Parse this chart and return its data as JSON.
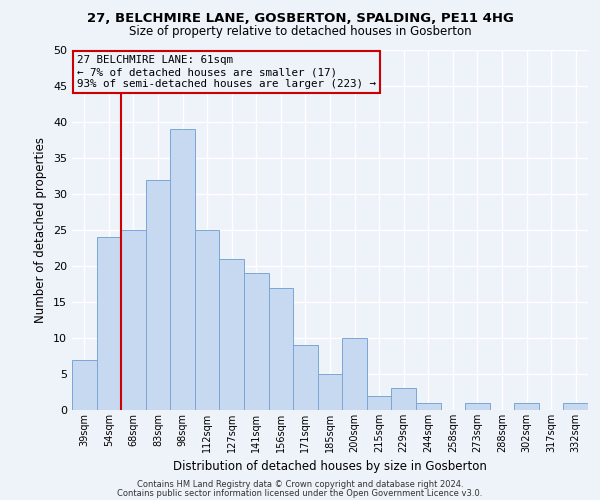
{
  "title": "27, BELCHMIRE LANE, GOSBERTON, SPALDING, PE11 4HG",
  "subtitle": "Size of property relative to detached houses in Gosberton",
  "xlabel": "Distribution of detached houses by size in Gosberton",
  "ylabel": "Number of detached properties",
  "bin_labels": [
    "39sqm",
    "54sqm",
    "68sqm",
    "83sqm",
    "98sqm",
    "112sqm",
    "127sqm",
    "141sqm",
    "156sqm",
    "171sqm",
    "185sqm",
    "200sqm",
    "215sqm",
    "229sqm",
    "244sqm",
    "258sqm",
    "273sqm",
    "288sqm",
    "302sqm",
    "317sqm",
    "332sqm"
  ],
  "bar_heights": [
    7,
    24,
    25,
    32,
    39,
    25,
    21,
    19,
    17,
    9,
    5,
    10,
    2,
    3,
    1,
    0,
    1,
    0,
    1,
    0,
    1
  ],
  "bar_color": "#c6d9f0",
  "bar_edge_color": "#7ba7d4",
  "vline_color": "#cc0000",
  "vline_x": 1.5,
  "annotation_line1": "27 BELCHMIRE LANE: 61sqm",
  "annotation_line2": "← 7% of detached houses are smaller (17)",
  "annotation_line3": "93% of semi-detached houses are larger (223) →",
  "annotation_box_edge": "#cc0000",
  "ylim": [
    0,
    50
  ],
  "yticks": [
    0,
    5,
    10,
    15,
    20,
    25,
    30,
    35,
    40,
    45,
    50
  ],
  "footnote1": "Contains HM Land Registry data © Crown copyright and database right 2024.",
  "footnote2": "Contains public sector information licensed under the Open Government Licence v3.0.",
  "bg_color": "#eef2f9",
  "grid_color": "#ffffff"
}
